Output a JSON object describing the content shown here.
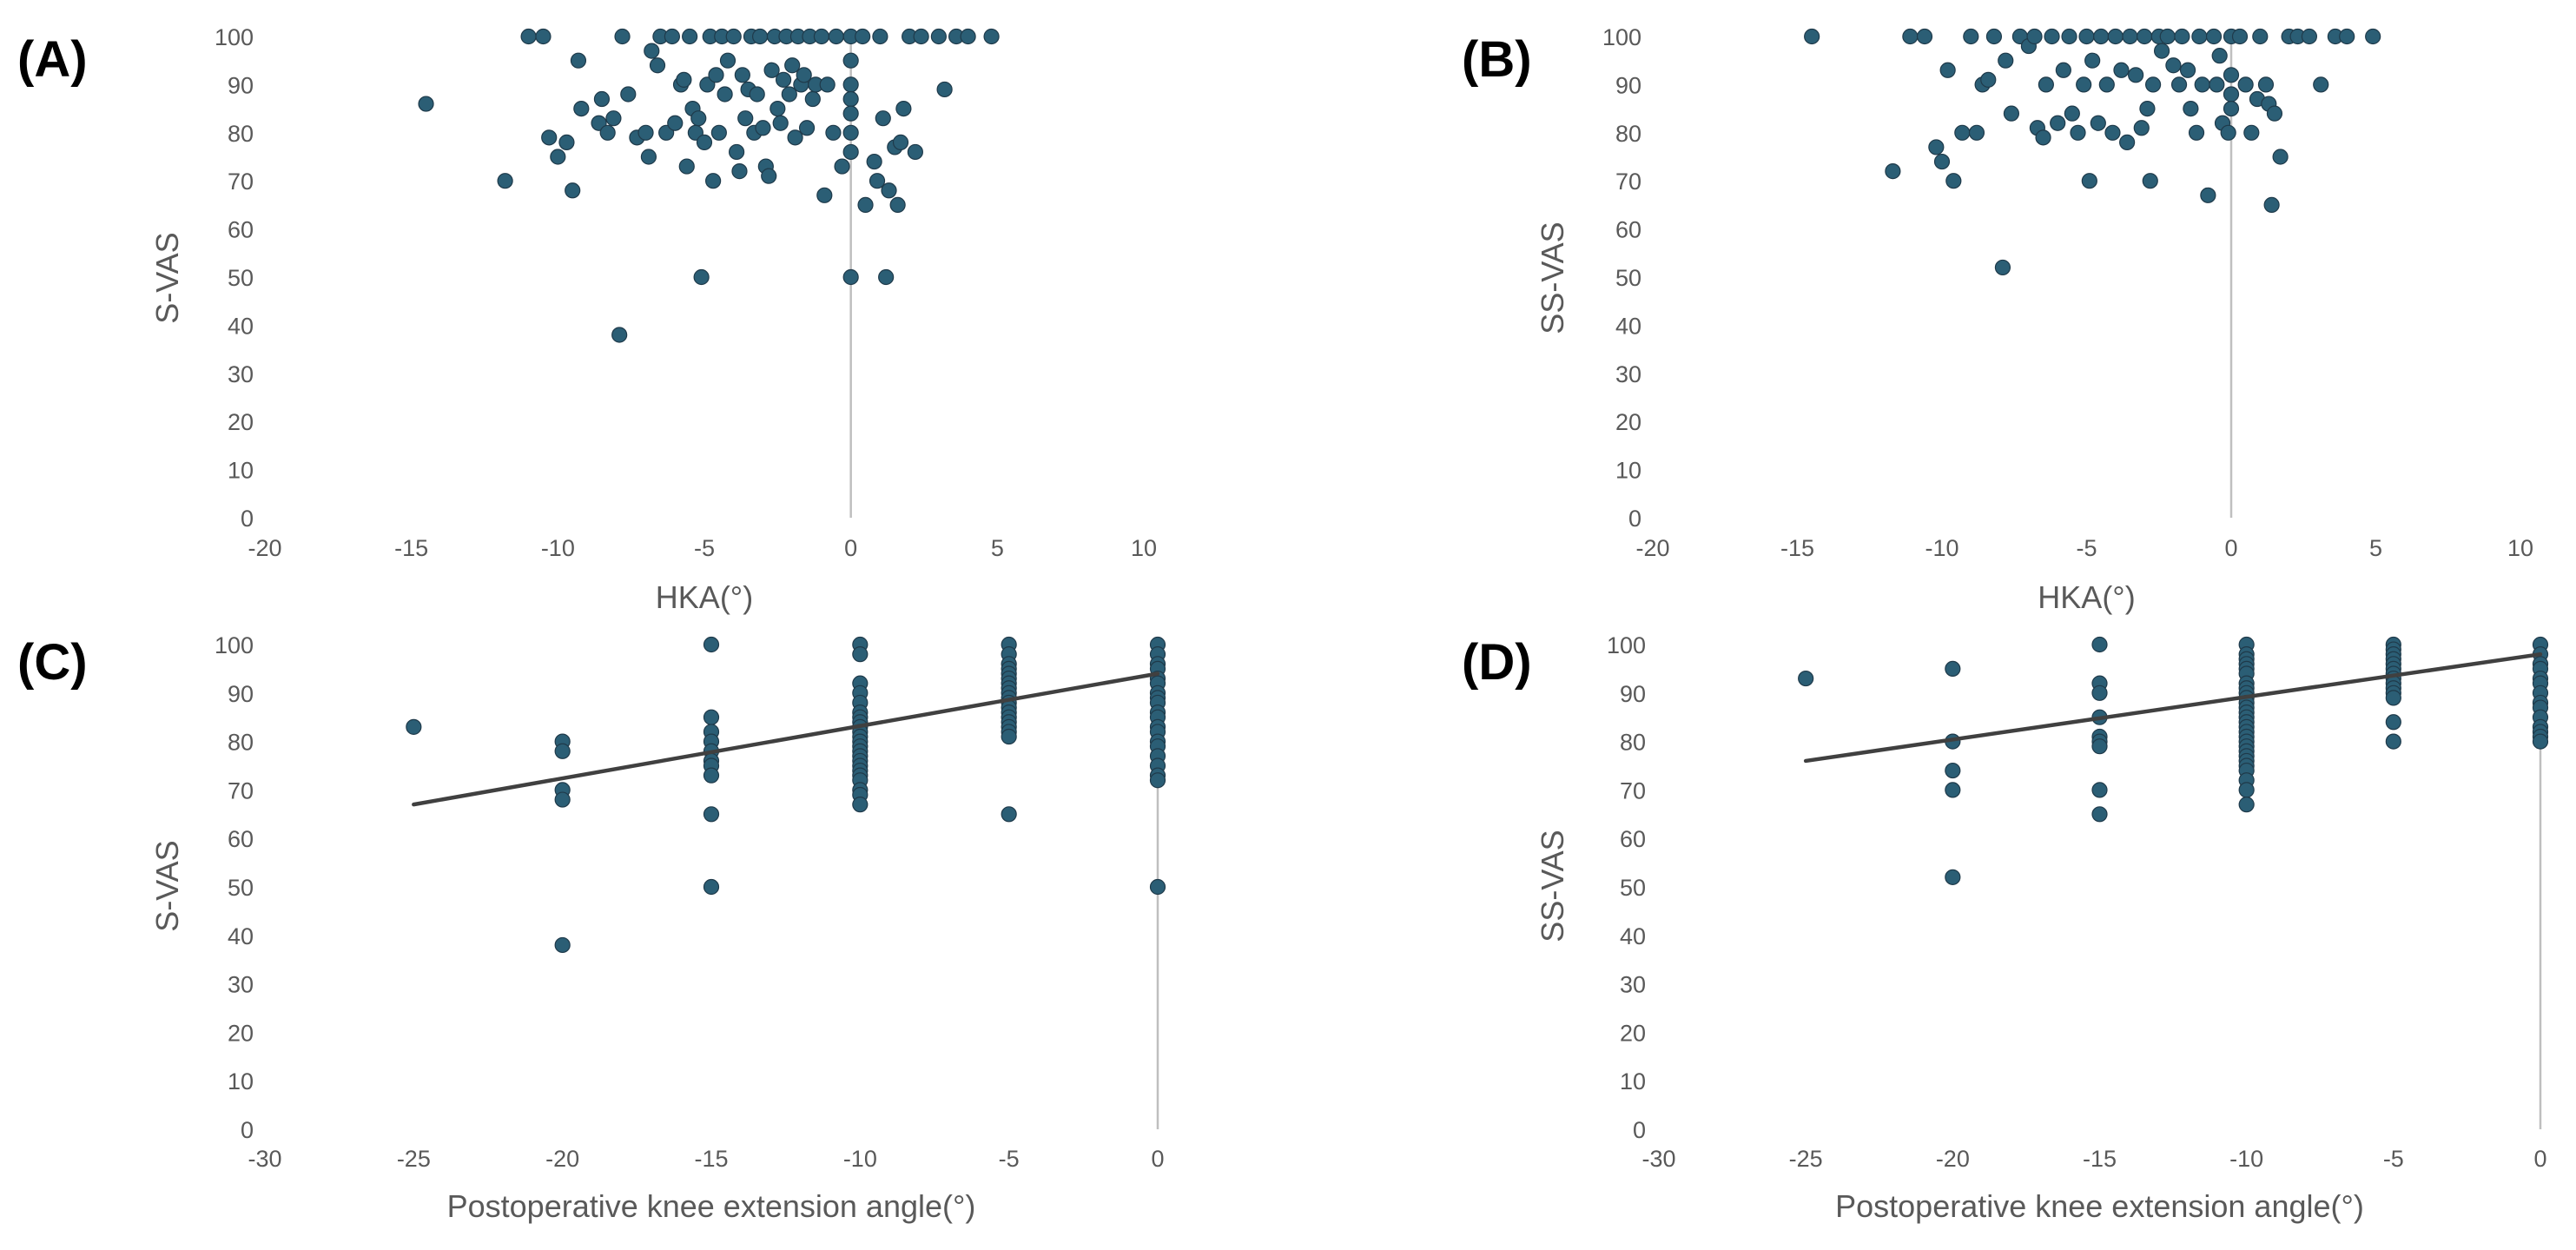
{
  "colors": {
    "point": "#2b5e75",
    "point_edge": "#1f3a4a",
    "trend": "#404040",
    "zero_line": "#bfbfbf",
    "text": "#595959"
  },
  "chart_data": [
    {
      "panel": "(A)",
      "type": "scatter",
      "xlabel": "HKA(°)",
      "ylabel": "S-VAS",
      "xlim": [
        -20,
        10
      ],
      "ylim": [
        0,
        100
      ],
      "xticks": [
        -20,
        -15,
        -10,
        -5,
        0,
        5,
        10
      ],
      "yticks": [
        0,
        10,
        20,
        30,
        40,
        50,
        60,
        70,
        80,
        90,
        100
      ],
      "grid": false,
      "trendline": null,
      "points": [
        [
          -14.5,
          86
        ],
        [
          -11.8,
          70
        ],
        [
          -11,
          100
        ],
        [
          -10.5,
          100
        ],
        [
          -10.3,
          79
        ],
        [
          -10,
          75
        ],
        [
          -9.7,
          78
        ],
        [
          -9.5,
          68
        ],
        [
          -9.2,
          85
        ],
        [
          -9.3,
          95
        ],
        [
          -8.6,
          82
        ],
        [
          -8.5,
          87
        ],
        [
          -8.3,
          80
        ],
        [
          -8.1,
          83
        ],
        [
          -7.9,
          38
        ],
        [
          -7.8,
          100
        ],
        [
          -7.6,
          88
        ],
        [
          -7.3,
          79
        ],
        [
          -7.0,
          80
        ],
        [
          -6.8,
          97
        ],
        [
          -6.9,
          75
        ],
        [
          -6.6,
          94
        ],
        [
          -6.5,
          100
        ],
        [
          -6.3,
          80
        ],
        [
          -6.1,
          100
        ],
        [
          -6.0,
          82
        ],
        [
          -5.8,
          90
        ],
        [
          -5.7,
          91
        ],
        [
          -5.6,
          73
        ],
        [
          -5.5,
          100
        ],
        [
          -5.4,
          85
        ],
        [
          -5.3,
          80
        ],
        [
          -5.2,
          83
        ],
        [
          -5.1,
          50
        ],
        [
          -5.0,
          78
        ],
        [
          -4.9,
          90
        ],
        [
          -4.8,
          100
        ],
        [
          -4.7,
          70
        ],
        [
          -4.6,
          92
        ],
        [
          -4.5,
          80
        ],
        [
          -4.4,
          100
        ],
        [
          -4.3,
          88
        ],
        [
          -4.2,
          95
        ],
        [
          -4.0,
          100
        ],
        [
          -3.9,
          76
        ],
        [
          -3.8,
          72
        ],
        [
          -3.7,
          92
        ],
        [
          -3.6,
          83
        ],
        [
          -3.5,
          89
        ],
        [
          -3.4,
          100
        ],
        [
          -3.3,
          80
        ],
        [
          -3.2,
          88
        ],
        [
          -3.1,
          100
        ],
        [
          -3.0,
          81
        ],
        [
          -2.9,
          73
        ],
        [
          -2.8,
          71
        ],
        [
          -2.7,
          93
        ],
        [
          -2.6,
          100
        ],
        [
          -2.5,
          85
        ],
        [
          -2.4,
          82
        ],
        [
          -2.3,
          91
        ],
        [
          -2.2,
          100
        ],
        [
          -2.1,
          88
        ],
        [
          -2.0,
          94
        ],
        [
          -1.9,
          79
        ],
        [
          -1.8,
          100
        ],
        [
          -1.7,
          90
        ],
        [
          -1.6,
          92
        ],
        [
          -1.5,
          81
        ],
        [
          -1.4,
          100
        ],
        [
          -1.3,
          87
        ],
        [
          -1.2,
          90
        ],
        [
          -1.0,
          100
        ],
        [
          -0.9,
          67
        ],
        [
          -0.8,
          90
        ],
        [
          -0.6,
          80
        ],
        [
          -0.5,
          100
        ],
        [
          -0.3,
          73
        ],
        [
          0,
          100
        ],
        [
          0,
          95
        ],
        [
          0,
          90
        ],
        [
          0,
          87
        ],
        [
          0,
          84
        ],
        [
          0,
          80
        ],
        [
          0,
          76
        ],
        [
          0,
          50
        ],
        [
          0.4,
          100
        ],
        [
          0.5,
          65
        ],
        [
          0.8,
          74
        ],
        [
          0.9,
          70
        ],
        [
          1.0,
          100
        ],
        [
          1.1,
          83
        ],
        [
          1.2,
          50
        ],
        [
          1.3,
          68
        ],
        [
          1.5,
          77
        ],
        [
          1.6,
          65
        ],
        [
          1.7,
          78
        ],
        [
          1.8,
          85
        ],
        [
          2.0,
          100
        ],
        [
          2.2,
          76
        ],
        [
          2.4,
          100
        ],
        [
          3.0,
          100
        ],
        [
          3.2,
          89
        ],
        [
          3.6,
          100
        ],
        [
          4.0,
          100
        ],
        [
          4.8,
          100
        ]
      ]
    },
    {
      "panel": "(B)",
      "type": "scatter",
      "xlabel": "HKA(°)",
      "ylabel": "SS-VAS",
      "xlim": [
        -20,
        10
      ],
      "ylim": [
        0,
        100
      ],
      "xticks": [
        -20,
        -15,
        -10,
        -5,
        0,
        5,
        10
      ],
      "yticks": [
        0,
        10,
        20,
        30,
        40,
        50,
        60,
        70,
        80,
        90,
        100
      ],
      "grid": false,
      "trendline": null,
      "points": [
        [
          -14.5,
          100
        ],
        [
          -11.7,
          72
        ],
        [
          -11.1,
          100
        ],
        [
          -10.6,
          100
        ],
        [
          -10.2,
          77
        ],
        [
          -10.0,
          74
        ],
        [
          -9.8,
          93
        ],
        [
          -9.6,
          70
        ],
        [
          -9.3,
          80
        ],
        [
          -9.0,
          100
        ],
        [
          -8.8,
          80
        ],
        [
          -8.6,
          90
        ],
        [
          -8.4,
          91
        ],
        [
          -8.2,
          100
        ],
        [
          -7.9,
          52
        ],
        [
          -7.8,
          95
        ],
        [
          -7.6,
          84
        ],
        [
          -7.3,
          100
        ],
        [
          -7.0,
          98
        ],
        [
          -6.8,
          100
        ],
        [
          -6.7,
          81
        ],
        [
          -6.5,
          79
        ],
        [
          -6.4,
          90
        ],
        [
          -6.2,
          100
        ],
        [
          -6.0,
          82
        ],
        [
          -5.8,
          93
        ],
        [
          -5.6,
          100
        ],
        [
          -5.5,
          84
        ],
        [
          -5.3,
          80
        ],
        [
          -5.1,
          90
        ],
        [
          -5.0,
          100
        ],
        [
          -4.9,
          70
        ],
        [
          -4.8,
          95
        ],
        [
          -4.6,
          82
        ],
        [
          -4.5,
          100
        ],
        [
          -4.3,
          90
        ],
        [
          -4.1,
          80
        ],
        [
          -4.0,
          100
        ],
        [
          -3.8,
          93
        ],
        [
          -3.6,
          78
        ],
        [
          -3.5,
          100
        ],
        [
          -3.3,
          92
        ],
        [
          -3.1,
          81
        ],
        [
          -3.0,
          100
        ],
        [
          -2.9,
          85
        ],
        [
          -2.8,
          70
        ],
        [
          -2.7,
          90
        ],
        [
          -2.5,
          100
        ],
        [
          -2.4,
          97
        ],
        [
          -2.2,
          100
        ],
        [
          -2.0,
          94
        ],
        [
          -1.8,
          90
        ],
        [
          -1.7,
          100
        ],
        [
          -1.5,
          93
        ],
        [
          -1.4,
          85
        ],
        [
          -1.2,
          80
        ],
        [
          -1.1,
          100
        ],
        [
          -1.0,
          90
        ],
        [
          -0.8,
          67
        ],
        [
          -0.6,
          100
        ],
        [
          -0.5,
          90
        ],
        [
          -0.4,
          96
        ],
        [
          -0.3,
          82
        ],
        [
          -0.1,
          80
        ],
        [
          0,
          100
        ],
        [
          0,
          92
        ],
        [
          0,
          88
        ],
        [
          0,
          85
        ],
        [
          0.3,
          100
        ],
        [
          0.5,
          90
        ],
        [
          0.7,
          80
        ],
        [
          0.9,
          87
        ],
        [
          1.0,
          100
        ],
        [
          1.2,
          90
        ],
        [
          1.3,
          86
        ],
        [
          1.4,
          65
        ],
        [
          1.5,
          84
        ],
        [
          1.7,
          75
        ],
        [
          2.0,
          100
        ],
        [
          2.3,
          100
        ],
        [
          2.7,
          100
        ],
        [
          3.1,
          90
        ],
        [
          3.6,
          100
        ],
        [
          4.0,
          100
        ],
        [
          4.9,
          100
        ]
      ]
    },
    {
      "panel": "(C)",
      "type": "scatter",
      "xlabel": "Postoperative knee extension angle(°)",
      "ylabel": "S-VAS",
      "xlim": [
        -30,
        0
      ],
      "ylim": [
        0,
        100
      ],
      "xticks": [
        -30,
        -25,
        -20,
        -15,
        -10,
        -5,
        0
      ],
      "yticks": [
        0,
        10,
        20,
        30,
        40,
        50,
        60,
        70,
        80,
        90,
        100
      ],
      "grid": false,
      "trendline": {
        "x": [
          -25,
          0
        ],
        "y": [
          67,
          94
        ]
      },
      "points": [
        [
          -25,
          83
        ],
        [
          -20,
          80
        ],
        [
          -20,
          78
        ],
        [
          -20,
          70
        ],
        [
          -20,
          68
        ],
        [
          -20,
          38
        ],
        [
          -15,
          100
        ],
        [
          -15,
          85
        ],
        [
          -15,
          82
        ],
        [
          -15,
          80
        ],
        [
          -15,
          78
        ],
        [
          -15,
          76
        ],
        [
          -15,
          75
        ],
        [
          -15,
          73
        ],
        [
          -15,
          65
        ],
        [
          -15,
          50
        ],
        [
          -10,
          100
        ],
        [
          -10,
          98
        ],
        [
          -10,
          92
        ],
        [
          -10,
          90
        ],
        [
          -10,
          88
        ],
        [
          -10,
          86
        ],
        [
          -10,
          85
        ],
        [
          -10,
          84
        ],
        [
          -10,
          83
        ],
        [
          -10,
          82
        ],
        [
          -10,
          81
        ],
        [
          -10,
          80
        ],
        [
          -10,
          79
        ],
        [
          -10,
          78
        ],
        [
          -10,
          77
        ],
        [
          -10,
          76
        ],
        [
          -10,
          75
        ],
        [
          -10,
          74
        ],
        [
          -10,
          73
        ],
        [
          -10,
          72
        ],
        [
          -10,
          70
        ],
        [
          -10,
          69
        ],
        [
          -10,
          67
        ],
        [
          -5,
          100
        ],
        [
          -5,
          98
        ],
        [
          -5,
          96
        ],
        [
          -5,
          95
        ],
        [
          -5,
          94
        ],
        [
          -5,
          93
        ],
        [
          -5,
          92
        ],
        [
          -5,
          91
        ],
        [
          -5,
          90
        ],
        [
          -5,
          89
        ],
        [
          -5,
          88
        ],
        [
          -5,
          87
        ],
        [
          -5,
          86
        ],
        [
          -5,
          85
        ],
        [
          -5,
          84
        ],
        [
          -5,
          83
        ],
        [
          -5,
          82
        ],
        [
          -5,
          81
        ],
        [
          -5,
          65
        ],
        [
          0,
          100
        ],
        [
          0,
          98
        ],
        [
          0,
          96
        ],
        [
          0,
          95
        ],
        [
          0,
          93
        ],
        [
          0,
          92
        ],
        [
          0,
          90
        ],
        [
          0,
          89
        ],
        [
          0,
          88
        ],
        [
          0,
          86
        ],
        [
          0,
          85
        ],
        [
          0,
          83
        ],
        [
          0,
          82
        ],
        [
          0,
          80
        ],
        [
          0,
          79
        ],
        [
          0,
          77
        ],
        [
          0,
          75
        ],
        [
          0,
          73
        ],
        [
          0,
          72
        ],
        [
          0,
          50
        ]
      ]
    },
    {
      "panel": "(D)",
      "type": "scatter",
      "xlabel": "Postoperative knee extension angle(°)",
      "ylabel": "SS-VAS",
      "xlim": [
        -30,
        0
      ],
      "ylim": [
        0,
        100
      ],
      "xticks": [
        -30,
        -25,
        -20,
        -15,
        -10,
        -5,
        0
      ],
      "yticks": [
        0,
        10,
        20,
        30,
        40,
        50,
        60,
        70,
        80,
        90,
        100
      ],
      "grid": false,
      "trendline": {
        "x": [
          -25,
          0
        ],
        "y": [
          76,
          98
        ]
      },
      "points": [
        [
          -25,
          93
        ],
        [
          -20,
          95
        ],
        [
          -20,
          80
        ],
        [
          -20,
          74
        ],
        [
          -20,
          70
        ],
        [
          -20,
          52
        ],
        [
          -15,
          100
        ],
        [
          -15,
          92
        ],
        [
          -15,
          90
        ],
        [
          -15,
          85
        ],
        [
          -15,
          81
        ],
        [
          -15,
          80
        ],
        [
          -15,
          79
        ],
        [
          -15,
          70
        ],
        [
          -15,
          65
        ],
        [
          -10,
          100
        ],
        [
          -10,
          98
        ],
        [
          -10,
          97
        ],
        [
          -10,
          96
        ],
        [
          -10,
          95
        ],
        [
          -10,
          94
        ],
        [
          -10,
          92
        ],
        [
          -10,
          91
        ],
        [
          -10,
          90
        ],
        [
          -10,
          89
        ],
        [
          -10,
          88
        ],
        [
          -10,
          87
        ],
        [
          -10,
          86
        ],
        [
          -10,
          85
        ],
        [
          -10,
          84
        ],
        [
          -10,
          83
        ],
        [
          -10,
          82
        ],
        [
          -10,
          81
        ],
        [
          -10,
          80
        ],
        [
          -10,
          79
        ],
        [
          -10,
          78
        ],
        [
          -10,
          77
        ],
        [
          -10,
          76
        ],
        [
          -10,
          75
        ],
        [
          -10,
          74
        ],
        [
          -10,
          72
        ],
        [
          -10,
          70
        ],
        [
          -10,
          67
        ],
        [
          -5,
          100
        ],
        [
          -5,
          99
        ],
        [
          -5,
          98
        ],
        [
          -5,
          97
        ],
        [
          -5,
          96
        ],
        [
          -5,
          95
        ],
        [
          -5,
          94
        ],
        [
          -5,
          93
        ],
        [
          -5,
          92
        ],
        [
          -5,
          91
        ],
        [
          -5,
          90
        ],
        [
          -5,
          89
        ],
        [
          -5,
          84
        ],
        [
          -5,
          80
        ],
        [
          0,
          100
        ],
        [
          0,
          98
        ],
        [
          0,
          96
        ],
        [
          0,
          95
        ],
        [
          0,
          93
        ],
        [
          0,
          92
        ],
        [
          0,
          90
        ],
        [
          0,
          88
        ],
        [
          0,
          87
        ],
        [
          0,
          85
        ],
        [
          0,
          83
        ],
        [
          0,
          82
        ],
        [
          0,
          81
        ],
        [
          0,
          80
        ]
      ]
    }
  ]
}
